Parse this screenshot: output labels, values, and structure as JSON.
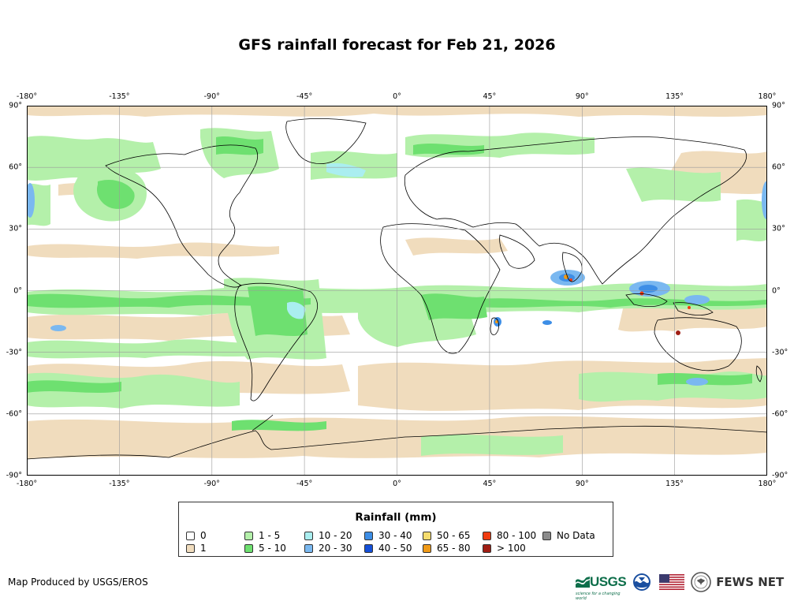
{
  "title": "GFS rainfall forecast for Feb 21, 2026",
  "axes": {
    "lon_ticks": [
      "-180°",
      "-135°",
      "-90°",
      "-45°",
      "0°",
      "45°",
      "90°",
      "135°",
      "180°"
    ],
    "lat_ticks": [
      "90°",
      "60°",
      "30°",
      "0°",
      "-30°",
      "-60°",
      "-90°"
    ],
    "lon_values": [
      -180,
      -135,
      -90,
      -45,
      0,
      45,
      90,
      135,
      180
    ],
    "lat_values": [
      90,
      60,
      30,
      0,
      -30,
      -60,
      -90
    ]
  },
  "legend": {
    "title": "Rainfall (mm)",
    "classes": [
      {
        "label": "0",
        "color": "#ffffff"
      },
      {
        "label": "1",
        "color": "#f0dcbd"
      },
      {
        "label": "1 - 5",
        "color": "#b4f0aa"
      },
      {
        "label": "5 - 10",
        "color": "#6ee070"
      },
      {
        "label": "10 - 20",
        "color": "#aaeef0"
      },
      {
        "label": "20 - 30",
        "color": "#7ab8f0"
      },
      {
        "label": "30 - 40",
        "color": "#3d8ee6"
      },
      {
        "label": "40 - 50",
        "color": "#1450d8"
      },
      {
        "label": "50 - 65",
        "color": "#f5dc6e"
      },
      {
        "label": "65 - 80",
        "color": "#f09a18"
      },
      {
        "label": "80 - 100",
        "color": "#f03c10"
      },
      {
        "label": "> 100",
        "color": "#a01e14"
      },
      {
        "label": "No Data",
        "color": "#8c8c8c"
      }
    ]
  },
  "footer": {
    "credit": "Map Produced by USGS/EROS",
    "usgs_logo": "USGS",
    "usgs_tagline": "science for a changing world",
    "fews_logo": "FEWS NET"
  },
  "icons": [
    "usgs-logo",
    "noaa-logo-icon",
    "us-flag-icon",
    "state-department-seal-icon"
  ]
}
